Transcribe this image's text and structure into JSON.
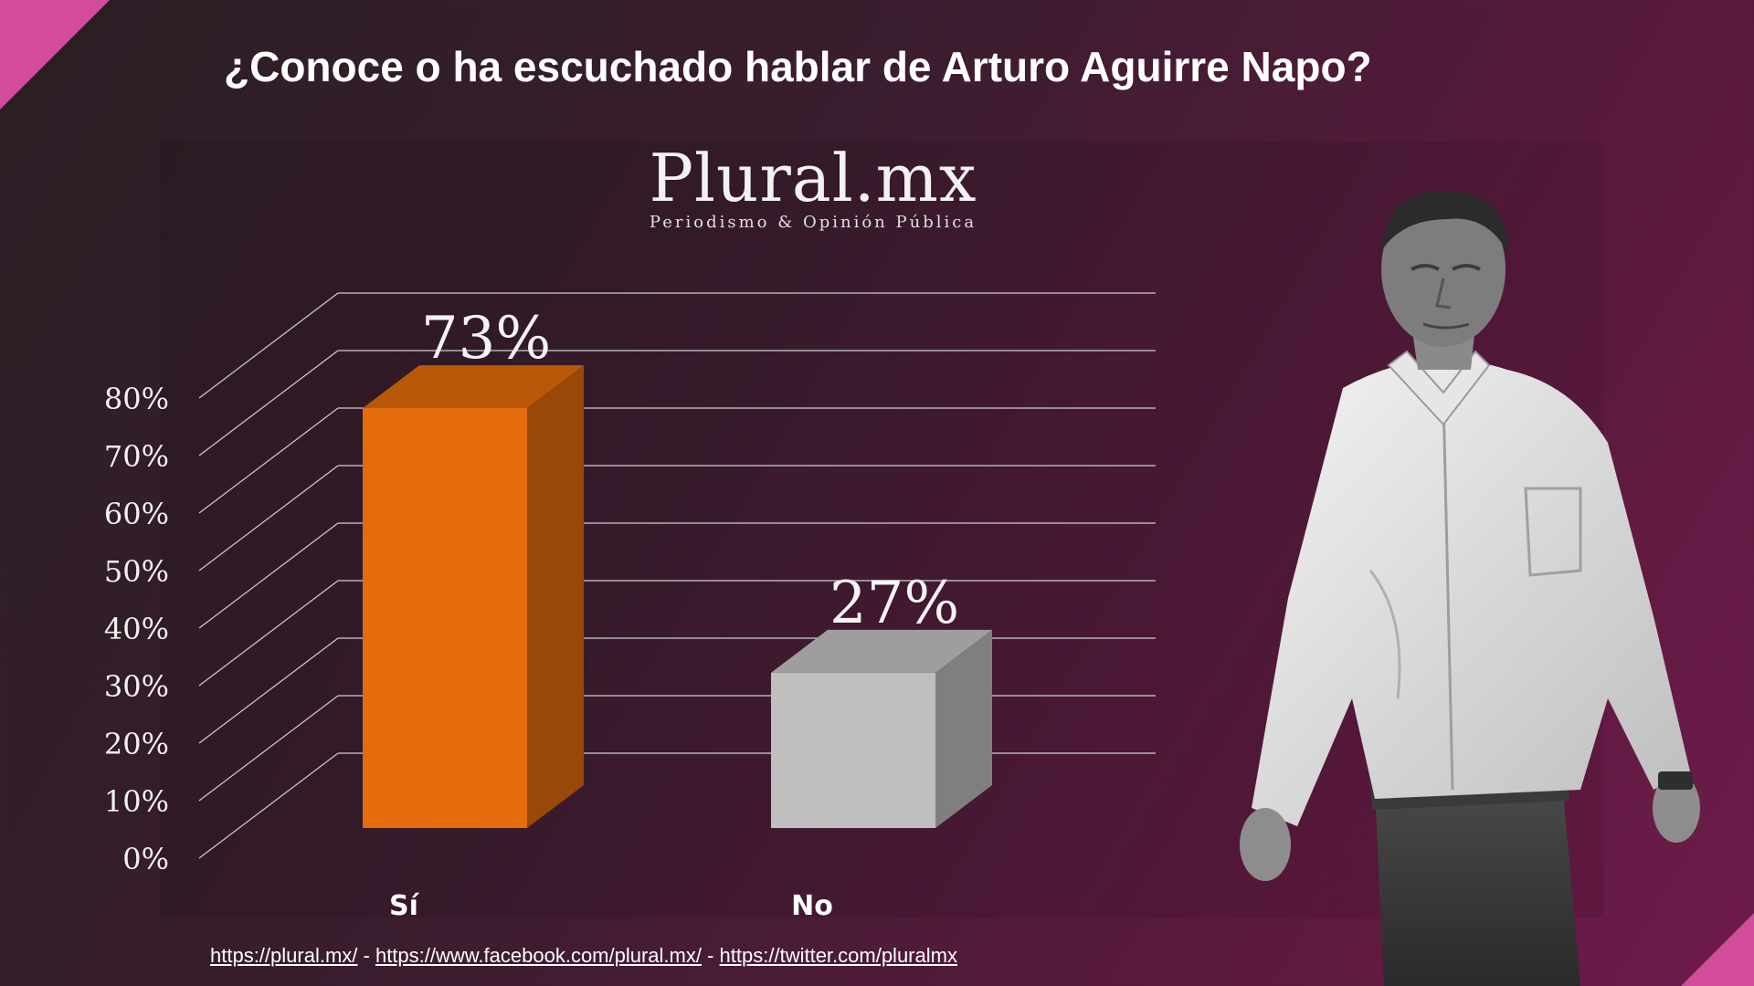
{
  "title": "¿Conoce o ha escuchado hablar de Arturo Aguirre Napo?",
  "logo": {
    "name": "Plural.mx",
    "tagline": "Periodismo & Opinión Pública"
  },
  "chart_data": {
    "type": "bar",
    "categories": [
      "Sí",
      "No"
    ],
    "values": [
      73,
      27
    ],
    "value_labels": [
      "73%",
      "27%"
    ],
    "ylim": [
      0,
      80
    ],
    "yticks": [
      "0%",
      "10%",
      "20%",
      "30%",
      "40%",
      "50%",
      "60%",
      "70%",
      "80%"
    ],
    "bar_colors": [
      "#e46c0a",
      "#bfbfbf"
    ],
    "grid": true
  },
  "footer": {
    "links": [
      "https://plural.mx/",
      "https://www.facebook.com/plural.mx/",
      "https://twitter.com/pluralmx"
    ],
    "separator": " - "
  },
  "colors": {
    "accent": "#d24c9b",
    "bar_si": "#e46c0a",
    "bar_no": "#bfbfbf"
  }
}
